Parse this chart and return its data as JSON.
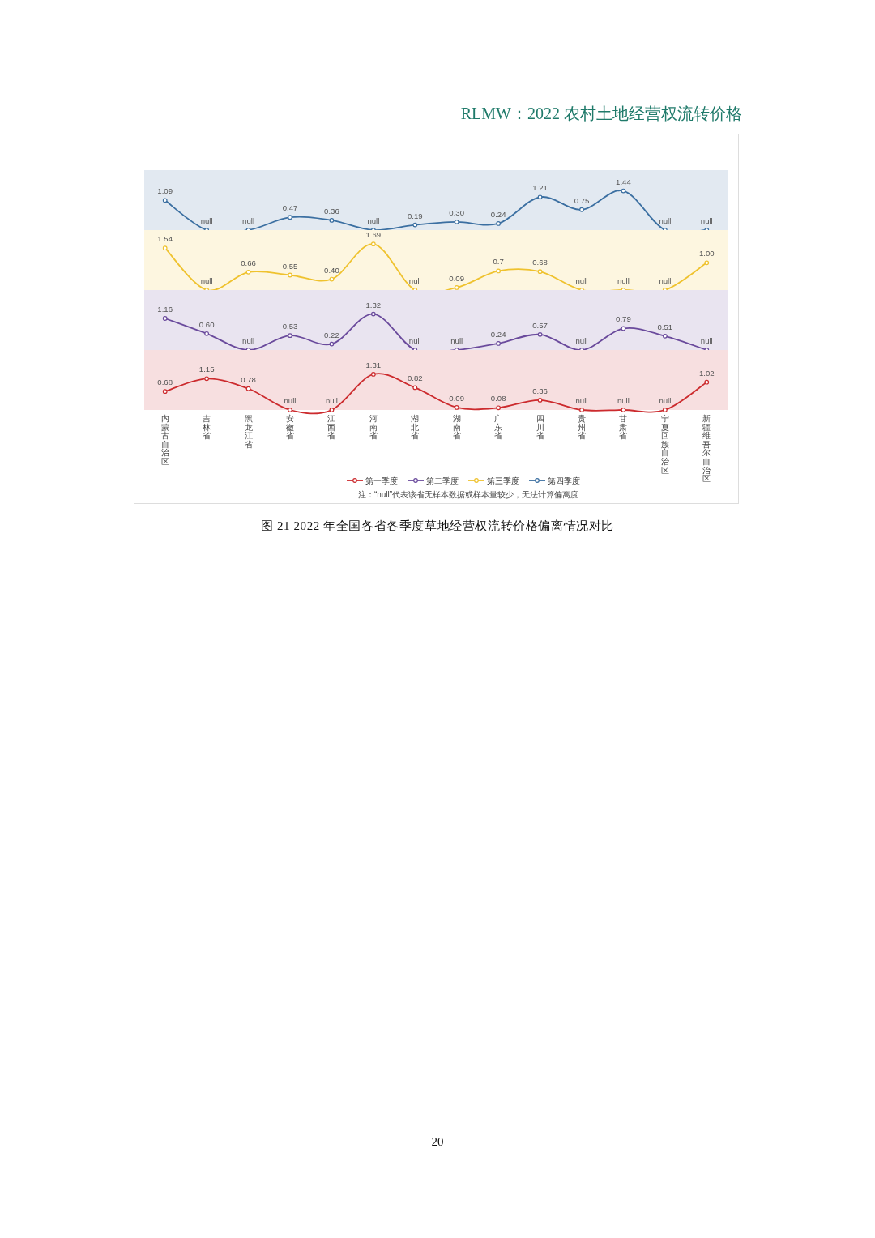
{
  "chart_data": [
    {
      "type": "line",
      "categories": [
        "内蒙古自治区",
        "吉林省",
        "黑龙江省",
        "安徽省",
        "江西省",
        "河南省",
        "湖北省",
        "湖南省",
        "广东省",
        "四川省",
        "贵州省",
        "甘肃省",
        "宁夏回族自治区",
        "新疆维吾尔自治区"
      ],
      "series": [
        {
          "name": "第四季度",
          "color": "#3b6fa1",
          "values": [
            1.09,
            0,
            0,
            0.47,
            0.36,
            0,
            0.19,
            0.3,
            0.24,
            1.21,
            0.75,
            1.44,
            0,
            0
          ],
          "value_labels": [
            "1.09",
            "null",
            "null",
            "0.47",
            "0.36",
            "null",
            "0.19",
            "0.30",
            "0.24",
            "1.21",
            "0.75",
            "1.44",
            "null",
            "null"
          ]
        }
      ],
      "ylim": [
        0,
        2.2
      ],
      "tick_labels": false,
      "legend": "bottom",
      "marker": "circle",
      "line_style": "solid"
    },
    {
      "type": "line",
      "categories": [
        "内蒙古自治区",
        "吉林省",
        "黑龙江省",
        "安徽省",
        "江西省",
        "河南省",
        "湖北省",
        "湖南省",
        "广东省",
        "四川省",
        "贵州省",
        "甘肃省",
        "宁夏回族自治区",
        "新疆维吾尔自治区"
      ],
      "series": [
        {
          "name": "第三季度",
          "color": "#efc22e",
          "values": [
            1.54,
            0,
            0.66,
            0.55,
            0.4,
            1.69,
            0,
            0.09,
            0.7,
            0.68,
            0,
            0,
            0,
            1.0
          ],
          "value_labels": [
            "1.54",
            "null",
            "0.66",
            "0.55",
            "0.40",
            "1.69",
            "null",
            "0.09",
            "0.7",
            "0.68",
            "null",
            "null",
            "null",
            "1.00"
          ]
        }
      ],
      "ylim": [
        0,
        2.2
      ],
      "tick_labels": false,
      "legend": "bottom",
      "marker": "circle",
      "line_style": "solid"
    },
    {
      "type": "line",
      "categories": [
        "内蒙古自治区",
        "吉林省",
        "黑龙江省",
        "安徽省",
        "江西省",
        "河南省",
        "湖北省",
        "湖南省",
        "广东省",
        "四川省",
        "贵州省",
        "甘肃省",
        "宁夏回族自治区",
        "新疆维吾尔自治区"
      ],
      "series": [
        {
          "name": "第二季度",
          "color": "#6a4a9c",
          "values": [
            1.16,
            0.6,
            0,
            0.53,
            0.22,
            1.32,
            0,
            0,
            0.24,
            0.57,
            0,
            0.79,
            0.51,
            0
          ],
          "value_labels": [
            "1.16",
            "0.60",
            "null",
            "0.53",
            "0.22",
            "1.32",
            "null",
            "null",
            "0.24",
            "0.57",
            "null",
            "0.79",
            "0.51",
            "null"
          ]
        }
      ],
      "ylim": [
        0,
        2.2
      ],
      "tick_labels": false,
      "legend": "bottom",
      "marker": "circle",
      "line_style": "solid"
    },
    {
      "type": "line",
      "title": "图 21 2022 年全国各省各季度草地经营权流转价格偏离情况对比",
      "annotations": [
        "注：“null”代表该省无样本数据或样本量较少，无法计算偏离度",
        "RLMW：2022 农村土地经营权流转价格",
        "20"
      ],
      "categories": [
        "内蒙古自治区",
        "吉林省",
        "黑龙江省",
        "安徽省",
        "江西省",
        "河南省",
        "湖北省",
        "湖南省",
        "广东省",
        "四川省",
        "贵州省",
        "甘肃省",
        "宁夏回族自治区",
        "新疆维吾尔自治区"
      ],
      "series": [
        {
          "name": "第一季度",
          "color": "#cc2b2e",
          "values": [
            0.68,
            1.15,
            0.78,
            0,
            0,
            1.31,
            0.82,
            0.09,
            0.08,
            0.36,
            0,
            0,
            0,
            1.02
          ],
          "value_labels": [
            "0.68",
            "1.15",
            "0.78",
            "null",
            "null",
            "1.31",
            "0.82",
            "0.09",
            "0.08",
            "0.36",
            "null",
            "null",
            "null",
            "1.02"
          ]
        }
      ],
      "ylim": [
        0,
        2.2
      ],
      "tick_labels": "x",
      "legend": "bottom",
      "marker": "circle",
      "line_style": "solid"
    }
  ]
}
